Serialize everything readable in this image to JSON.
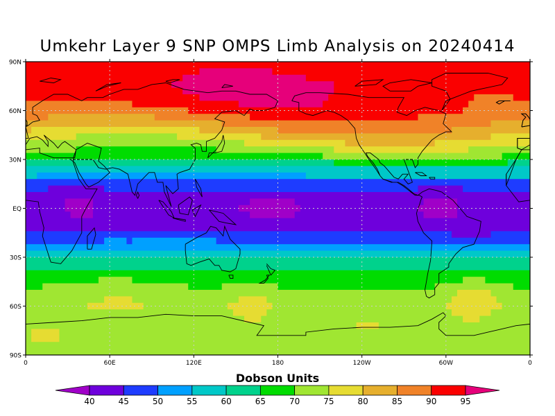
{
  "title": "Umkehr Layer 9 SNP OMPS Limb Analysis on 20240414",
  "lat_ticks": [
    "90N",
    "60N",
    "30N",
    "EQ",
    "30S",
    "60S",
    "90S"
  ],
  "lon_ticks": [
    "0",
    "60E",
    "120E",
    "180",
    "120W",
    "60W",
    "0"
  ],
  "colorbar": {
    "title": "Dobson Units",
    "levels": [
      40,
      45,
      50,
      55,
      60,
      65,
      70,
      75,
      80,
      85,
      90,
      95
    ],
    "colors": [
      "#a000c8",
      "#6e00dc",
      "#1e3cff",
      "#00a0ff",
      "#00c8c8",
      "#00d28c",
      "#00dc00",
      "#a0e632",
      "#e6dc32",
      "#e6af2d",
      "#f08228",
      "#fa0000",
      "#e6007a"
    ]
  },
  "chart_data": {
    "type": "heatmap",
    "title": "Umkehr Layer 9 SNP OMPS Limb Analysis on 20240414",
    "variable": "Umkehr Layer 9 ozone",
    "units": "Dobson Units",
    "date": "20240414",
    "x_range": [
      0,
      360
    ],
    "y_range": [
      -90,
      90
    ],
    "xticks": [
      "0",
      "60E",
      "120E",
      "180",
      "120W",
      "60W",
      "0"
    ],
    "yticks": [
      "90N",
      "60N",
      "30N",
      "EQ",
      "30S",
      "60S",
      "90S"
    ],
    "grid": true,
    "zonal_profile": {
      "lat": [
        90,
        75,
        60,
        50,
        40,
        30,
        25,
        20,
        15,
        5,
        -5,
        -15,
        -20,
        -25,
        -30,
        -40,
        -50,
        -60,
        -75,
        -90
      ],
      "value": [
        93,
        94,
        90,
        84,
        76,
        67,
        60,
        55,
        47,
        42,
        42,
        45,
        50,
        55,
        60,
        66,
        70,
        72,
        71,
        70
      ]
    }
  }
}
